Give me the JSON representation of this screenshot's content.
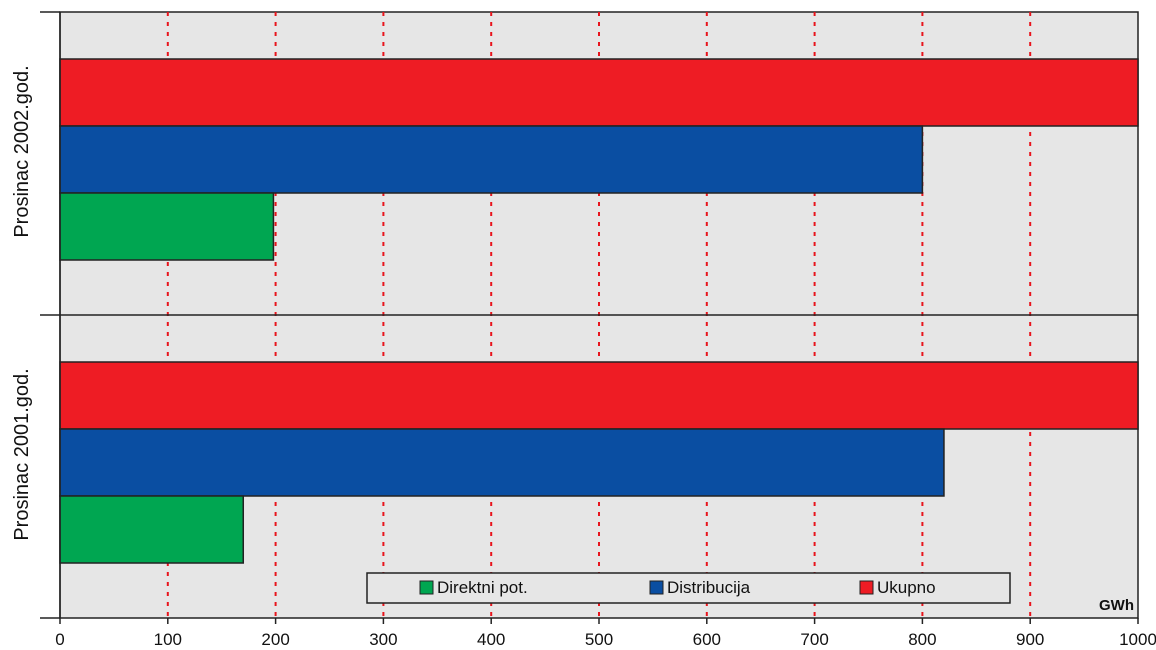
{
  "chart_data": {
    "type": "bar",
    "orientation": "horizontal",
    "unit_label": "GWh",
    "xlim": [
      0,
      1000
    ],
    "x_ticks": [
      "0",
      "100",
      "200",
      "300",
      "400",
      "500",
      "600",
      "700",
      "800",
      "900",
      "1000"
    ],
    "grid": true,
    "categories": [
      "Prosinac 2002.god.",
      "Prosinac  2001.god."
    ],
    "series": [
      {
        "name": "Ukupno",
        "color": "#ee1c24",
        "values": [
          1000,
          1000
        ]
      },
      {
        "name": "Distribucija",
        "color": "#0a4ea2",
        "values": [
          800,
          820
        ]
      },
      {
        "name": "Direktni pot.",
        "color": "#00a651",
        "values": [
          198,
          170
        ]
      }
    ],
    "legend": {
      "placement": "bottom-center",
      "order": [
        "Direktni pot.",
        "Distribucija",
        "Ukupno"
      ]
    },
    "colors": {
      "plot_background": "#e6e6e6",
      "gridline": "#e8141c"
    }
  }
}
